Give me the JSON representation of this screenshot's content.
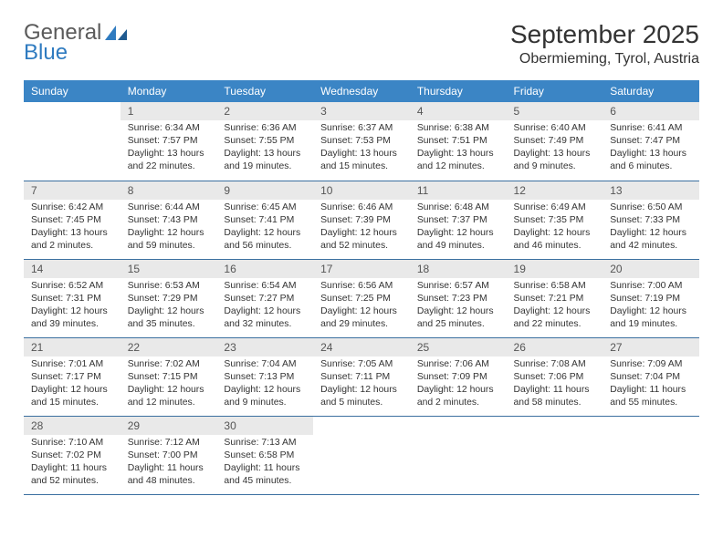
{
  "logo": {
    "text1": "General",
    "text2": "Blue"
  },
  "title": "September 2025",
  "location": "Obermieming, Tyrol, Austria",
  "colors": {
    "header_bg": "#3b85c5",
    "header_text": "#ffffff",
    "daynum_bg": "#e9e9e9",
    "row_border": "#3b6fa0",
    "logo_blue": "#2f7bc0"
  },
  "weekdays": [
    "Sunday",
    "Monday",
    "Tuesday",
    "Wednesday",
    "Thursday",
    "Friday",
    "Saturday"
  ],
  "weeks": [
    [
      null,
      {
        "n": "1",
        "sr": "6:34 AM",
        "ss": "7:57 PM",
        "dl": "13 hours and 22 minutes."
      },
      {
        "n": "2",
        "sr": "6:36 AM",
        "ss": "7:55 PM",
        "dl": "13 hours and 19 minutes."
      },
      {
        "n": "3",
        "sr": "6:37 AM",
        "ss": "7:53 PM",
        "dl": "13 hours and 15 minutes."
      },
      {
        "n": "4",
        "sr": "6:38 AM",
        "ss": "7:51 PM",
        "dl": "13 hours and 12 minutes."
      },
      {
        "n": "5",
        "sr": "6:40 AM",
        "ss": "7:49 PM",
        "dl": "13 hours and 9 minutes."
      },
      {
        "n": "6",
        "sr": "6:41 AM",
        "ss": "7:47 PM",
        "dl": "13 hours and 6 minutes."
      }
    ],
    [
      {
        "n": "7",
        "sr": "6:42 AM",
        "ss": "7:45 PM",
        "dl": "13 hours and 2 minutes."
      },
      {
        "n": "8",
        "sr": "6:44 AM",
        "ss": "7:43 PM",
        "dl": "12 hours and 59 minutes."
      },
      {
        "n": "9",
        "sr": "6:45 AM",
        "ss": "7:41 PM",
        "dl": "12 hours and 56 minutes."
      },
      {
        "n": "10",
        "sr": "6:46 AM",
        "ss": "7:39 PM",
        "dl": "12 hours and 52 minutes."
      },
      {
        "n": "11",
        "sr": "6:48 AM",
        "ss": "7:37 PM",
        "dl": "12 hours and 49 minutes."
      },
      {
        "n": "12",
        "sr": "6:49 AM",
        "ss": "7:35 PM",
        "dl": "12 hours and 46 minutes."
      },
      {
        "n": "13",
        "sr": "6:50 AM",
        "ss": "7:33 PM",
        "dl": "12 hours and 42 minutes."
      }
    ],
    [
      {
        "n": "14",
        "sr": "6:52 AM",
        "ss": "7:31 PM",
        "dl": "12 hours and 39 minutes."
      },
      {
        "n": "15",
        "sr": "6:53 AM",
        "ss": "7:29 PM",
        "dl": "12 hours and 35 minutes."
      },
      {
        "n": "16",
        "sr": "6:54 AM",
        "ss": "7:27 PM",
        "dl": "12 hours and 32 minutes."
      },
      {
        "n": "17",
        "sr": "6:56 AM",
        "ss": "7:25 PM",
        "dl": "12 hours and 29 minutes."
      },
      {
        "n": "18",
        "sr": "6:57 AM",
        "ss": "7:23 PM",
        "dl": "12 hours and 25 minutes."
      },
      {
        "n": "19",
        "sr": "6:58 AM",
        "ss": "7:21 PM",
        "dl": "12 hours and 22 minutes."
      },
      {
        "n": "20",
        "sr": "7:00 AM",
        "ss": "7:19 PM",
        "dl": "12 hours and 19 minutes."
      }
    ],
    [
      {
        "n": "21",
        "sr": "7:01 AM",
        "ss": "7:17 PM",
        "dl": "12 hours and 15 minutes."
      },
      {
        "n": "22",
        "sr": "7:02 AM",
        "ss": "7:15 PM",
        "dl": "12 hours and 12 minutes."
      },
      {
        "n": "23",
        "sr": "7:04 AM",
        "ss": "7:13 PM",
        "dl": "12 hours and 9 minutes."
      },
      {
        "n": "24",
        "sr": "7:05 AM",
        "ss": "7:11 PM",
        "dl": "12 hours and 5 minutes."
      },
      {
        "n": "25",
        "sr": "7:06 AM",
        "ss": "7:09 PM",
        "dl": "12 hours and 2 minutes."
      },
      {
        "n": "26",
        "sr": "7:08 AM",
        "ss": "7:06 PM",
        "dl": "11 hours and 58 minutes."
      },
      {
        "n": "27",
        "sr": "7:09 AM",
        "ss": "7:04 PM",
        "dl": "11 hours and 55 minutes."
      }
    ],
    [
      {
        "n": "28",
        "sr": "7:10 AM",
        "ss": "7:02 PM",
        "dl": "11 hours and 52 minutes."
      },
      {
        "n": "29",
        "sr": "7:12 AM",
        "ss": "7:00 PM",
        "dl": "11 hours and 48 minutes."
      },
      {
        "n": "30",
        "sr": "7:13 AM",
        "ss": "6:58 PM",
        "dl": "11 hours and 45 minutes."
      },
      null,
      null,
      null,
      null
    ]
  ],
  "labels": {
    "sunrise": "Sunrise:",
    "sunset": "Sunset:",
    "daylight": "Daylight:"
  }
}
